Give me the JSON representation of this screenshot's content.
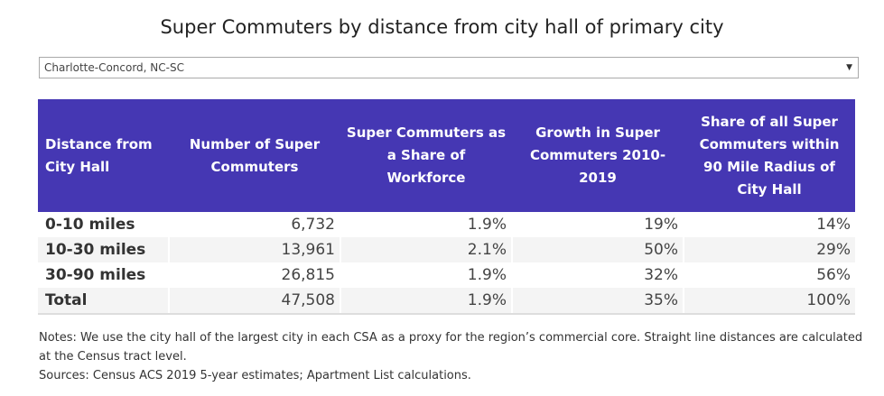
{
  "title": "Super Commuters by distance from city hall of primary city",
  "filter": {
    "selected": "Charlotte-Concord, NC-SC",
    "icon": "caret-down-icon"
  },
  "colors": {
    "header": "#4537b3"
  },
  "table": {
    "headers": [
      "Distance from City Hall",
      "Number of Super Commuters",
      "Super Commuters as a Share of Workforce",
      "Growth in Super Commuters 2010-2019",
      "Share of all Super Commuters within 90 Mile Radius of City Hall"
    ],
    "rows": [
      [
        "0-10 miles",
        "6,732",
        "1.9%",
        "19%",
        "14%"
      ],
      [
        "10-30 miles",
        "13,961",
        "2.1%",
        "50%",
        "29%"
      ],
      [
        "30-90 miles",
        "26,815",
        "1.9%",
        "32%",
        "56%"
      ],
      [
        "Total",
        "47,508",
        "1.9%",
        "35%",
        "100%"
      ]
    ]
  },
  "notes": "Notes: We use the city hall of the largest city in each CSA as a proxy for the region’s commercial core. Straight line distances are calculated at the Census tract level.",
  "sources": "Sources: Census ACS 2019 5-year estimates; Apartment List calculations."
}
